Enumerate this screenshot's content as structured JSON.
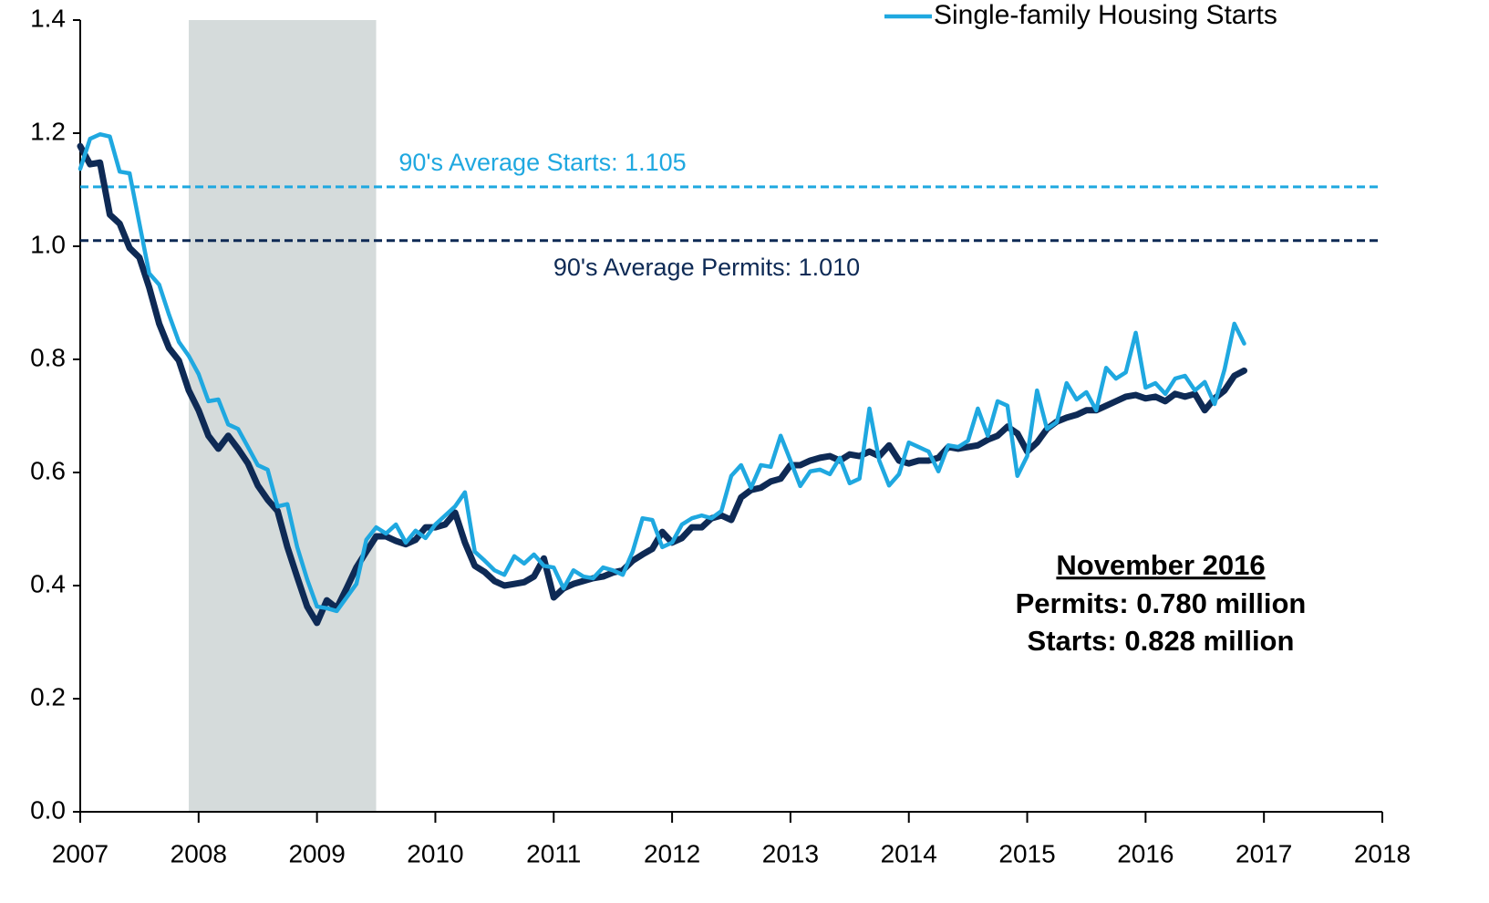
{
  "chart_data": {
    "type": "line",
    "xlim": [
      2007,
      2018
    ],
    "xticks": [
      2007,
      2008,
      2009,
      2010,
      2011,
      2012,
      2013,
      2014,
      2015,
      2016,
      2017,
      2018
    ],
    "ylim": [
      0,
      1.4
    ],
    "yticks": [
      {
        "value": 0,
        "label": "0.0"
      },
      0.2,
      0.4,
      0.6,
      0.8,
      {
        "value": 1,
        "label": "1.0"
      },
      1.2,
      1.4
    ],
    "shaded_region": {
      "x": [
        2007.917,
        2009.5
      ],
      "color": "#d5dbdb"
    },
    "reference_lines": [
      {
        "label": "90's Average Starts: 1.105",
        "value": 1.105,
        "color": "#1fa8e0"
      },
      {
        "label": "90's Average Permits: 1.010",
        "value": 1.01,
        "color": "#0e2a55"
      }
    ],
    "annotation": {
      "title": "November 2016",
      "lines": [
        "Permits: 0.780 million",
        "Starts: 0.828 million"
      ]
    },
    "legend": "top-right",
    "x": [
      2007,
      2007.083,
      2007.167,
      2007.25,
      2007.333,
      2007.417,
      2007.5,
      2007.583,
      2007.667,
      2007.75,
      2007.833,
      2007.917,
      2008,
      2008.083,
      2008.167,
      2008.25,
      2008.333,
      2008.417,
      2008.5,
      2008.583,
      2008.667,
      2008.75,
      2008.833,
      2008.917,
      2009,
      2009.083,
      2009.167,
      2009.25,
      2009.333,
      2009.417,
      2009.5,
      2009.583,
      2009.667,
      2009.75,
      2009.833,
      2009.917,
      2010,
      2010.083,
      2010.167,
      2010.25,
      2010.333,
      2010.417,
      2010.5,
      2010.583,
      2010.667,
      2010.75,
      2010.833,
      2010.917,
      2011,
      2011.083,
      2011.167,
      2011.25,
      2011.333,
      2011.417,
      2011.5,
      2011.583,
      2011.667,
      2011.75,
      2011.833,
      2011.917,
      2012,
      2012.083,
      2012.167,
      2012.25,
      2012.333,
      2012.417,
      2012.5,
      2012.583,
      2012.667,
      2012.75,
      2012.833,
      2012.917,
      2013,
      2013.083,
      2013.167,
      2013.25,
      2013.333,
      2013.417,
      2013.5,
      2013.583,
      2013.667,
      2013.75,
      2013.833,
      2013.917,
      2014,
      2014.083,
      2014.167,
      2014.25,
      2014.333,
      2014.417,
      2014.5,
      2014.583,
      2014.667,
      2014.75,
      2014.833,
      2014.917,
      2015,
      2015.083,
      2015.167,
      2015.25,
      2015.333,
      2015.417,
      2015.5,
      2015.583,
      2015.667,
      2015.75,
      2015.833,
      2015.917,
      2016,
      2016.083,
      2016.167,
      2016.25,
      2016.333,
      2016.417,
      2016.5,
      2016.583,
      2016.667,
      2016.75,
      2016.833
    ],
    "series": [
      {
        "color": "#0e2a55",
        "width": 7,
        "values": [
          1.177,
          1.145,
          1.148,
          1.056,
          1.04,
          0.997,
          0.98,
          0.927,
          0.863,
          0.82,
          0.798,
          0.745,
          0.71,
          0.665,
          0.642,
          0.665,
          0.642,
          0.616,
          0.577,
          0.552,
          0.532,
          0.468,
          0.415,
          0.363,
          0.334,
          0.374,
          0.36,
          0.395,
          0.432,
          0.46,
          0.487,
          0.487,
          0.479,
          0.473,
          0.481,
          0.503,
          0.503,
          0.508,
          0.529,
          0.476,
          0.435,
          0.424,
          0.408,
          0.4,
          0.403,
          0.406,
          0.416,
          0.448,
          0.379,
          0.395,
          0.403,
          0.408,
          0.413,
          0.416,
          0.423,
          0.427,
          0.444,
          0.455,
          0.465,
          0.495,
          0.476,
          0.484,
          0.503,
          0.503,
          0.519,
          0.524,
          0.516,
          0.556,
          0.569,
          0.573,
          0.584,
          0.589,
          0.613,
          0.613,
          0.621,
          0.626,
          0.629,
          0.621,
          0.632,
          0.629,
          0.637,
          0.629,
          0.648,
          0.621,
          0.616,
          0.621,
          0.621,
          0.626,
          0.645,
          0.642,
          0.645,
          0.648,
          0.658,
          0.665,
          0.681,
          0.669,
          0.637,
          0.653,
          0.677,
          0.69,
          0.697,
          0.702,
          0.71,
          0.71,
          0.718,
          0.726,
          0.734,
          0.737,
          0.731,
          0.734,
          0.726,
          0.739,
          0.734,
          0.739,
          0.71,
          0.731,
          0.745,
          0.771,
          0.78
        ]
      },
      {
        "name": "Single-family Housing Starts",
        "color": "#1fa8e0",
        "width": 4.5,
        "values": [
          1.137,
          1.19,
          1.198,
          1.194,
          1.132,
          1.129,
          1.04,
          0.952,
          0.932,
          0.879,
          0.831,
          0.806,
          0.774,
          0.726,
          0.729,
          0.685,
          0.677,
          0.645,
          0.613,
          0.605,
          0.54,
          0.544,
          0.468,
          0.411,
          0.363,
          0.36,
          0.355,
          0.379,
          0.403,
          0.481,
          0.503,
          0.492,
          0.508,
          0.476,
          0.497,
          0.484,
          0.508,
          0.524,
          0.54,
          0.565,
          0.46,
          0.444,
          0.427,
          0.419,
          0.452,
          0.439,
          0.455,
          0.435,
          0.432,
          0.395,
          0.427,
          0.416,
          0.413,
          0.432,
          0.427,
          0.419,
          0.46,
          0.519,
          0.516,
          0.468,
          0.476,
          0.508,
          0.519,
          0.524,
          0.519,
          0.532,
          0.594,
          0.613,
          0.573,
          0.613,
          0.61,
          0.665,
          0.621,
          0.576,
          0.602,
          0.605,
          0.597,
          0.626,
          0.581,
          0.589,
          0.713,
          0.621,
          0.577,
          0.597,
          0.653,
          0.645,
          0.637,
          0.602,
          0.648,
          0.645,
          0.656,
          0.713,
          0.665,
          0.726,
          0.718,
          0.594,
          0.629,
          0.745,
          0.677,
          0.689,
          0.758,
          0.729,
          0.742,
          0.71,
          0.785,
          0.766,
          0.777,
          0.847,
          0.75,
          0.758,
          0.739,
          0.766,
          0.771,
          0.745,
          0.76,
          0.721,
          0.782,
          0.863,
          0.828
        ]
      }
    ]
  }
}
